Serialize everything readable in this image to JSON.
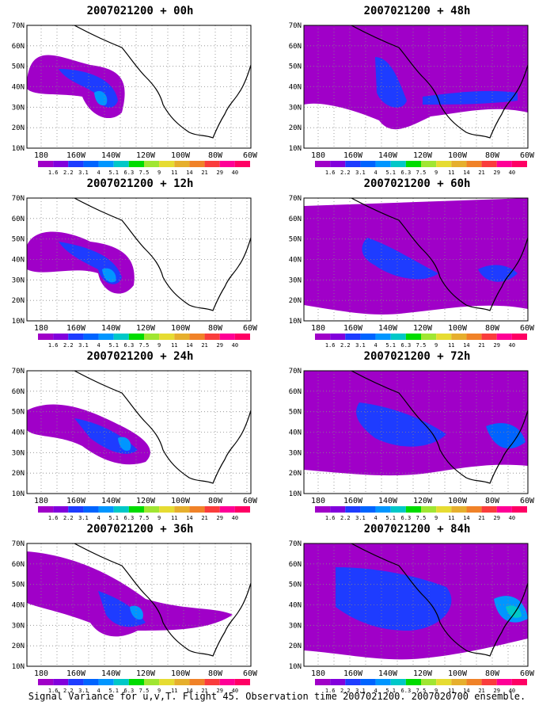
{
  "caption": "Signal Variance for u,v,T. Flight 45. Observation time 2007021200. 2007020700 ensemble.",
  "lat_labels": [
    "70N",
    "60N",
    "50N",
    "40N",
    "30N",
    "20N",
    "10N"
  ],
  "lon_labels": [
    "180",
    "160W",
    "140W",
    "120W",
    "100W",
    "80W",
    "60W"
  ],
  "colorbar": {
    "labels": [
      "1.6",
      "2.2",
      "3.1",
      "4",
      "5.1",
      "6.3",
      "7.5",
      "9",
      "11",
      "14",
      "21",
      "29",
      "40"
    ],
    "colors": [
      "#a000c8",
      "#8200dc",
      "#1e3cff",
      "#0064ff",
      "#0096ff",
      "#00c8c8",
      "#00dc00",
      "#a0e632",
      "#e6dc32",
      "#e6af2d",
      "#f08228",
      "#fa3c3c",
      "#ff0096",
      "#ff0064"
    ]
  },
  "panels": [
    {
      "title": "2007021200 + 00h"
    },
    {
      "title": "2007021200 + 48h"
    },
    {
      "title": "2007021200 + 12h"
    },
    {
      "title": "2007021200 + 60h"
    },
    {
      "title": "2007021200 + 24h"
    },
    {
      "title": "2007021200 + 72h"
    },
    {
      "title": "2007021200 + 36h"
    },
    {
      "title": "2007021200 + 84h"
    }
  ]
}
